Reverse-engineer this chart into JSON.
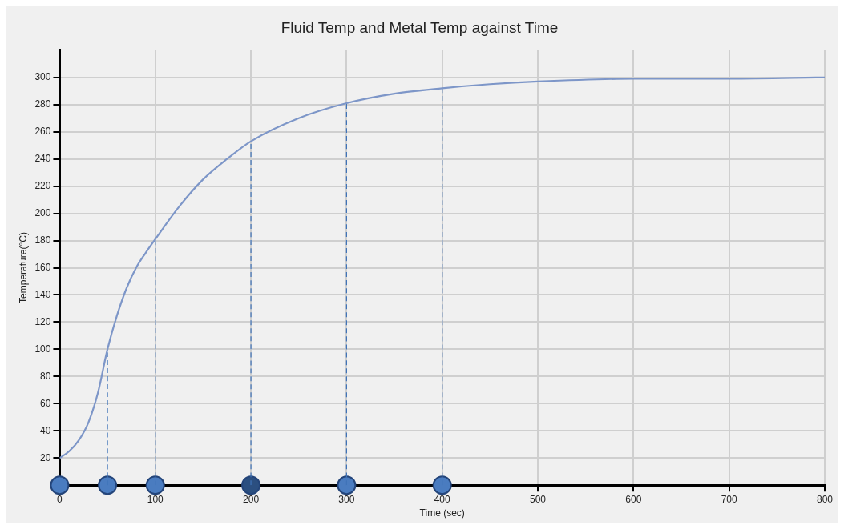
{
  "chart_data": {
    "type": "line",
    "title": "Fluid Temp and Metal Temp against Time",
    "xlabel": "Time (sec)",
    "ylabel": "Temperature(°C)",
    "xlim": [
      0,
      800
    ],
    "xticks": [
      0,
      100,
      200,
      300,
      400,
      500,
      600,
      700,
      800
    ],
    "ylim": [
      0,
      320
    ],
    "yticks": [
      20,
      40,
      60,
      80,
      100,
      120,
      140,
      160,
      180,
      200,
      220,
      240,
      260,
      280,
      300
    ],
    "grid": true,
    "series": [
      {
        "color": "#7d96c8",
        "marker": "none",
        "line_style": "solid",
        "x": [
          0,
          10,
          20,
          30,
          40,
          50,
          60,
          70,
          80,
          90,
          100,
          125,
          150,
          175,
          200,
          250,
          300,
          350,
          400,
          450,
          500,
          600,
          700,
          800
        ],
        "values": [
          20,
          25,
          33,
          46,
          68,
          100,
          125,
          145,
          160,
          171,
          181,
          205,
          225,
          240,
          253,
          270,
          281,
          288,
          292,
          295,
          297,
          299,
          299,
          300
        ]
      },
      {
        "type": "line",
        "color": "#3f73b8",
        "marker": "none",
        "line_style": "dashed",
        "x": [
          50,
          50
        ],
        "values": [
          0,
          100
        ]
      },
      {
        "type": "line",
        "color": "#3f73b8",
        "marker": "none",
        "line_style": "dashed",
        "x": [
          100,
          100
        ],
        "values": [
          0,
          181
        ]
      },
      {
        "type": "line",
        "color": "#3f73b8",
        "marker": "none",
        "line_style": "dashed",
        "x": [
          200,
          200
        ],
        "values": [
          0,
          253
        ]
      },
      {
        "type": "line",
        "color": "#3f73b8",
        "marker": "none",
        "line_style": "dashed",
        "x": [
          300,
          300
        ],
        "values": [
          0,
          281
        ]
      },
      {
        "type": "line",
        "color": "#3f73b8",
        "marker": "none",
        "line_style": "dashed",
        "x": [
          400,
          400
        ],
        "values": [
          0,
          292
        ]
      },
      {
        "type": "scatter",
        "color": "#4a7cc0",
        "colors": [
          "#4a7cc0",
          "#4a7cc0",
          "#4a7cc0",
          "#2b4f80",
          "#4a7cc0",
          "#4a7cc0"
        ],
        "marker": "circle",
        "x": [
          0,
          50,
          100,
          200,
          300,
          400
        ],
        "values": [
          0,
          0,
          0,
          0,
          0,
          0
        ]
      }
    ]
  }
}
